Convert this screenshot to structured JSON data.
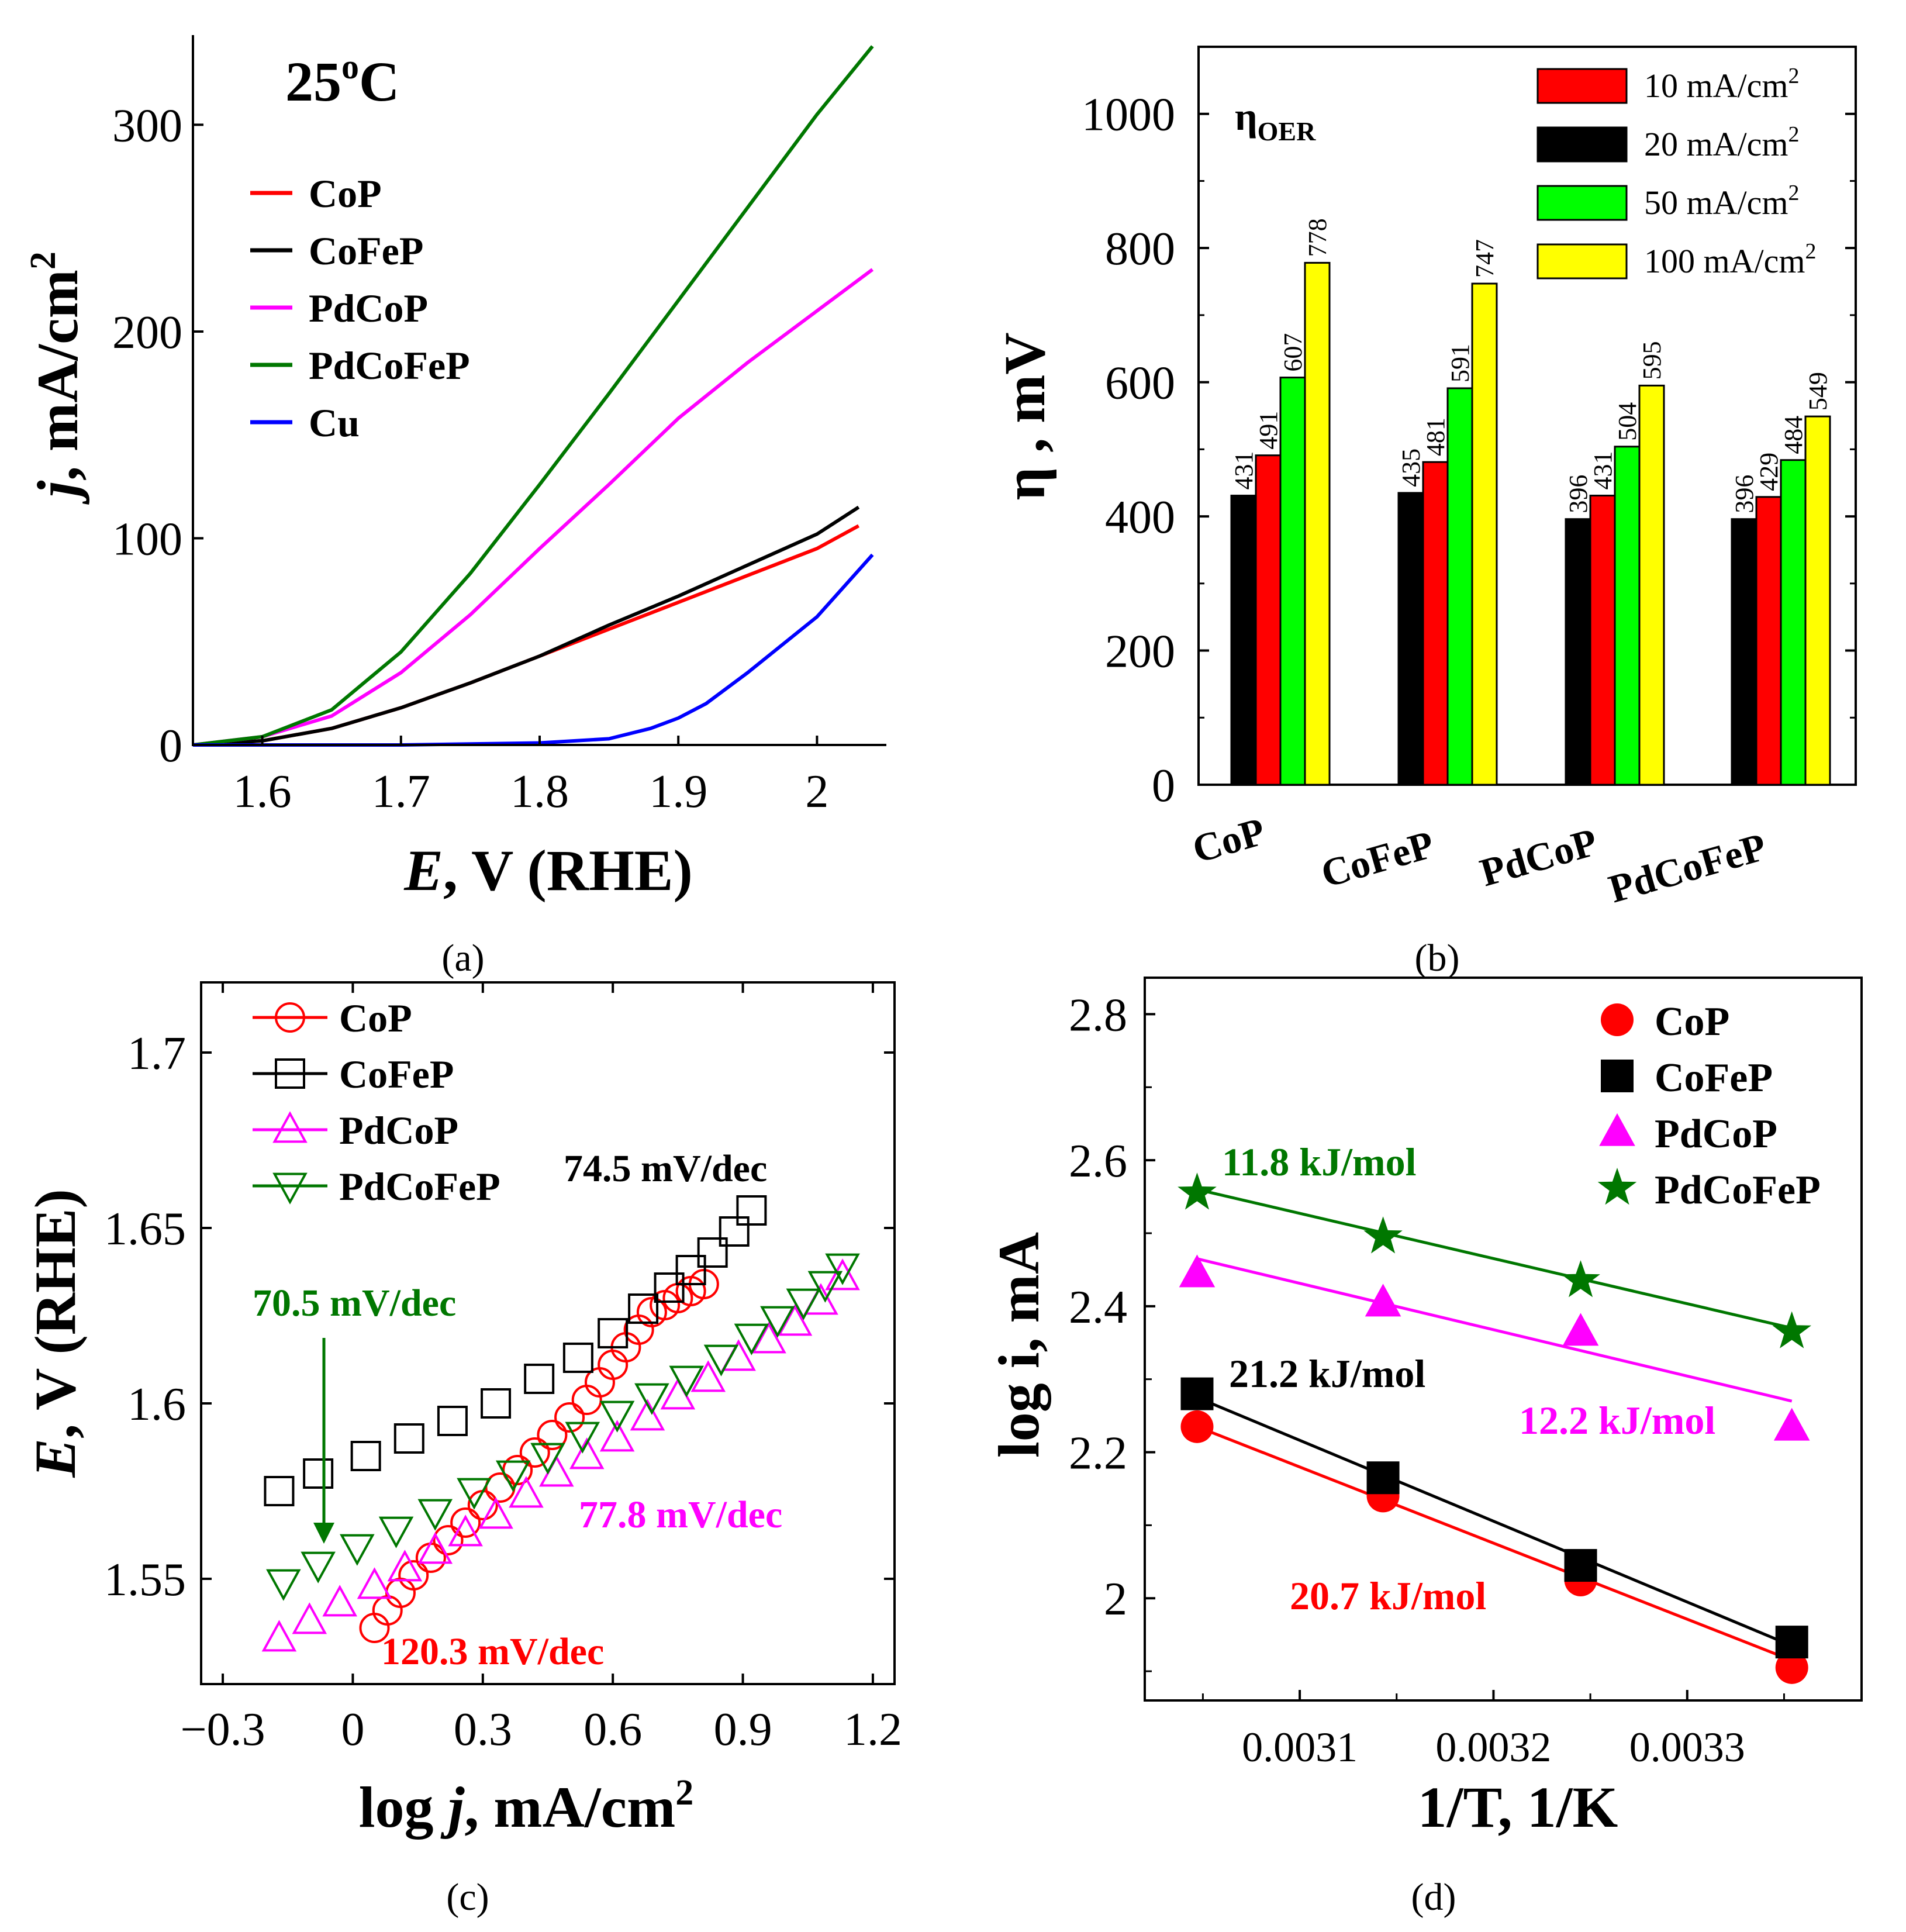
{
  "chart_data": [
    {
      "panel": "(a)",
      "type": "line",
      "title": "25",
      "title_sup": "o",
      "title_suffix": "C",
      "xlabel_italic": "E",
      "xlabel_rest": ", V (RHE)",
      "ylabel_italic": "j",
      "ylabel_rest": ", mA/cm",
      "ylabel_sup": "2",
      "xlim": [
        1.55,
        2.05
      ],
      "ylim": [
        0,
        340
      ],
      "xticks": [
        1.6,
        1.7,
        1.8,
        1.9,
        2.0
      ],
      "xtick_labels": [
        "1.6",
        "1.7",
        "1.8",
        "1.9",
        "2"
      ],
      "yticks": [
        0,
        100,
        200,
        300
      ],
      "ytick_labels": [
        "0",
        "100",
        "200",
        "300"
      ],
      "legend": "top-left",
      "series": [
        {
          "name": "CoP",
          "color": "#ff0000",
          "x": [
            1.55,
            1.6,
            1.65,
            1.7,
            1.75,
            1.8,
            1.85,
            1.9,
            1.95,
            2.0,
            2.03
          ],
          "y": [
            0,
            2,
            8,
            18,
            30,
            43,
            56,
            69,
            82,
            95,
            106
          ]
        },
        {
          "name": "CoFeP",
          "color": "#000000",
          "x": [
            1.55,
            1.6,
            1.65,
            1.7,
            1.75,
            1.8,
            1.85,
            1.9,
            1.95,
            2.0,
            2.03
          ],
          "y": [
            0,
            2,
            8,
            18,
            30,
            43,
            58,
            72,
            87,
            102,
            115
          ]
        },
        {
          "name": "PdCoP",
          "color": "#ff00ff",
          "x": [
            1.55,
            1.6,
            1.65,
            1.7,
            1.75,
            1.8,
            1.85,
            1.9,
            1.95,
            2.0,
            2.04
          ],
          "y": [
            0,
            4,
            14,
            35,
            63,
            95,
            126,
            158,
            185,
            210,
            230
          ]
        },
        {
          "name": "PdCoFeP",
          "color": "#007700",
          "x": [
            1.55,
            1.6,
            1.65,
            1.7,
            1.75,
            1.8,
            1.85,
            1.9,
            1.95,
            2.0,
            2.04
          ],
          "y": [
            0,
            4,
            17,
            45,
            83,
            126,
            170,
            215,
            260,
            305,
            338
          ]
        },
        {
          "name": "Cu",
          "color": "#0000ff",
          "x": [
            1.55,
            1.7,
            1.8,
            1.85,
            1.88,
            1.9,
            1.92,
            1.95,
            2.0,
            2.04
          ],
          "y": [
            0,
            0,
            1,
            3,
            8,
            13,
            20,
            35,
            62,
            92
          ]
        }
      ]
    },
    {
      "panel": "(b)",
      "type": "bar",
      "title": "η",
      "title_sub": "OER",
      "ylabel": "η , mV",
      "ylim": [
        0,
        1100
      ],
      "yticks": [
        0,
        200,
        400,
        600,
        800,
        1000
      ],
      "ytick_labels": [
        "0",
        "200",
        "400",
        "600",
        "800",
        "1000"
      ],
      "categories": [
        "CoP",
        "CoFeP",
        "PdCoP",
        "PdCoFeP"
      ],
      "legend": "top-right",
      "series": [
        {
          "name": "20 mA/cm",
          "sup": "2",
          "color": "#000000",
          "values": [
            431,
            435,
            396,
            396
          ],
          "labels": [
            "431",
            "435",
            "396",
            "396"
          ]
        },
        {
          "name": "10 mA/cm",
          "sup": "2",
          "color": "#ff0000",
          "values": [
            491,
            481,
            431,
            429
          ],
          "labels": [
            "491",
            "481",
            "431",
            "429"
          ]
        },
        {
          "name": "50 mA/cm",
          "sup": "2",
          "color": "#00ff00",
          "values": [
            607,
            591,
            504,
            484
          ],
          "labels": [
            "607",
            "591",
            "504",
            "484"
          ]
        },
        {
          "name": "100 mA/cm",
          "sup": "2",
          "color": "#ffff00",
          "values": [
            778,
            747,
            595,
            549
          ],
          "labels": [
            "778",
            "747",
            "595",
            "549"
          ]
        }
      ],
      "legend_order": [
        1,
        0,
        2,
        3
      ]
    },
    {
      "panel": "(c)",
      "type": "scatter",
      "xlabel": "log ",
      "xlabel_italic": "j",
      "xlabel_rest": ", mA/cm",
      "xlabel_sup": "2",
      "ylabel_italic": "E",
      "ylabel_rest": ", V (RHE)",
      "xlim": [
        -0.35,
        1.25
      ],
      "ylim": [
        1.52,
        1.72
      ],
      "xticks": [
        -0.3,
        0,
        0.3,
        0.6,
        0.9,
        1.2
      ],
      "xtick_labels": [
        "−0.3",
        "0",
        "0.3",
        "0.6",
        "0.9",
        "1.2"
      ],
      "yticks": [
        1.55,
        1.6,
        1.65,
        1.7
      ],
      "ytick_labels": [
        "1.55",
        "1.6",
        "1.65",
        "1.7"
      ],
      "legend": "top-left",
      "series": [
        {
          "name": "CoP",
          "color": "#ff0000",
          "marker": "circle",
          "x": [
            0.05,
            0.08,
            0.11,
            0.14,
            0.18,
            0.22,
            0.26,
            0.3,
            0.34,
            0.38,
            0.42,
            0.46,
            0.5,
            0.54,
            0.57,
            0.6,
            0.63,
            0.66,
            0.69,
            0.72,
            0.75,
            0.78,
            0.81
          ],
          "y": [
            1.536,
            1.541,
            1.546,
            1.551,
            1.556,
            1.561,
            1.566,
            1.571,
            1.576,
            1.581,
            1.586,
            1.591,
            1.596,
            1.601,
            1.606,
            1.611,
            1.616,
            1.621,
            1.626,
            1.628,
            1.63,
            1.632,
            1.634
          ]
        },
        {
          "name": "CoFeP",
          "color": "#000000",
          "marker": "square",
          "x": [
            -0.17,
            -0.08,
            0.03,
            0.13,
            0.23,
            0.33,
            0.43,
            0.52,
            0.6,
            0.67,
            0.73,
            0.78,
            0.83,
            0.88,
            0.92
          ],
          "y": [
            1.575,
            1.58,
            1.585,
            1.59,
            1.595,
            1.6,
            1.607,
            1.613,
            1.62,
            1.627,
            1.633,
            1.638,
            1.643,
            1.649,
            1.655
          ]
        },
        {
          "name": "PdCoP",
          "color": "#ff00ff",
          "marker": "triangle-up",
          "x": [
            -0.17,
            -0.1,
            -0.03,
            0.05,
            0.12,
            0.19,
            0.26,
            0.33,
            0.4,
            0.47,
            0.54,
            0.61,
            0.68,
            0.75,
            0.82,
            0.89,
            0.96,
            1.02,
            1.08,
            1.13
          ],
          "y": [
            1.533,
            1.538,
            1.543,
            1.548,
            1.553,
            1.558,
            1.563,
            1.568,
            1.574,
            1.58,
            1.585,
            1.59,
            1.596,
            1.602,
            1.607,
            1.613,
            1.618,
            1.623,
            1.629,
            1.636
          ]
        },
        {
          "name": "PdCoFeP",
          "color": "#007700",
          "marker": "triangle-down",
          "x": [
            -0.16,
            -0.08,
            0.01,
            0.1,
            0.19,
            0.28,
            0.37,
            0.45,
            0.53,
            0.61,
            0.69,
            0.77,
            0.85,
            0.92,
            0.98,
            1.04,
            1.09,
            1.13
          ],
          "y": [
            1.549,
            1.554,
            1.559,
            1.564,
            1.569,
            1.575,
            1.58,
            1.585,
            1.591,
            1.597,
            1.602,
            1.607,
            1.613,
            1.619,
            1.624,
            1.629,
            1.634,
            1.639
          ]
        }
      ],
      "annotations": [
        {
          "text": "74.5 mV/dec",
          "color": "#000000"
        },
        {
          "text": "70.5 mV/dec",
          "color": "#007700"
        },
        {
          "text": "77.8 mV/dec",
          "color": "#ff00ff"
        },
        {
          "text": "120.3 mV/dec",
          "color": "#ff0000"
        }
      ]
    },
    {
      "panel": "(d)",
      "type": "scatter",
      "xlabel": "1/T, 1/K",
      "ylabel": "log i, mA",
      "xlim": [
        0.00302,
        0.00339
      ],
      "ylim": [
        1.86,
        2.85
      ],
      "xticks": [
        0.0031,
        0.0032,
        0.0033
      ],
      "xtick_labels": [
        "0.0031",
        "0.0032",
        "0.0033"
      ],
      "yticks": [
        2.0,
        2.2,
        2.4,
        2.6,
        2.8
      ],
      "ytick_labels": [
        "2",
        "2.2",
        "2.4",
        "2.6",
        "2.8"
      ],
      "legend": "top-right",
      "series": [
        {
          "name": "CoP",
          "color": "#ff0000",
          "marker": "circle",
          "x": [
            0.003047,
            0.003143,
            0.003245,
            0.003354
          ],
          "y": [
            2.235,
            2.14,
            2.025,
            1.905
          ],
          "fit": [
            2.235,
            1.915
          ]
        },
        {
          "name": "CoFeP",
          "color": "#000000",
          "marker": "square",
          "x": [
            0.003047,
            0.003143,
            0.003245,
            0.003354
          ],
          "y": [
            2.28,
            2.165,
            2.045,
            1.94
          ],
          "fit": [
            2.275,
            1.935
          ]
        },
        {
          "name": "PdCoP",
          "color": "#ff00ff",
          "marker": "triangle",
          "x": [
            0.003047,
            0.003143,
            0.003245,
            0.003354
          ],
          "y": [
            2.445,
            2.405,
            2.365,
            2.235
          ],
          "fit": [
            2.465,
            2.27
          ]
        },
        {
          "name": "PdCoFeP",
          "color": "#007700",
          "marker": "star",
          "x": [
            0.003047,
            0.003143,
            0.003245,
            0.003354
          ],
          "y": [
            2.555,
            2.495,
            2.435,
            2.365
          ],
          "fit": [
            2.56,
            2.37
          ]
        }
      ],
      "annotations": [
        {
          "text": "11.8 kJ/mol",
          "color": "#007700"
        },
        {
          "text": "21.2 kJ/mol",
          "color": "#000000"
        },
        {
          "text": "12.2 kJ/mol",
          "color": "#ff00ff"
        },
        {
          "text": "20.7 kJ/mol",
          "color": "#ff0000"
        }
      ]
    }
  ]
}
